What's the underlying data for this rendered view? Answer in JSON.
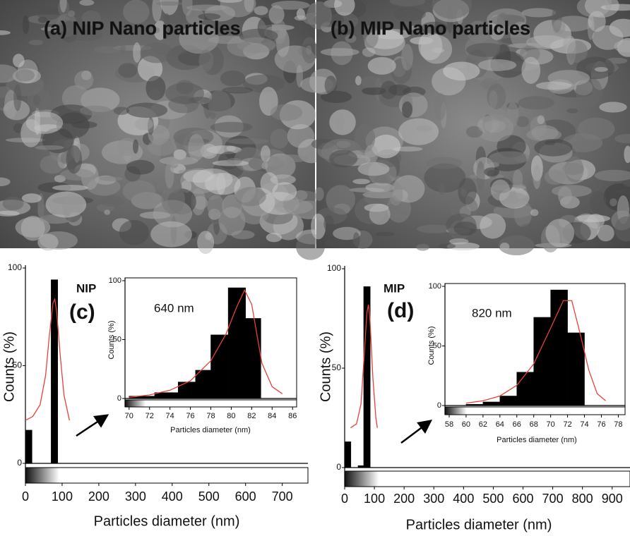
{
  "images": [
    {
      "label": "(a) NIP Nano particles",
      "color": "#f5e400"
    },
    {
      "label": "(b) MIP Nano particles",
      "color": "#ffffff"
    }
  ],
  "chart_data": [
    {
      "type": "histogram",
      "xlabel": "Particles diameter (nm)",
      "ylabel": "Counts (%)",
      "annotations": [
        "NIP",
        "(c)"
      ],
      "bins": [
        0,
        18,
        70,
        88
      ],
      "values": [
        17,
        0,
        94
      ],
      "color": "#000000",
      "fit": {
        "x": [
          0,
          20,
          40,
          55,
          65,
          75,
          80,
          85,
          95,
          105,
          120
        ],
        "values": [
          22,
          24,
          30,
          45,
          65,
          82,
          84,
          78,
          55,
          35,
          22
        ],
        "color": "#e8413a"
      },
      "xlim": [
        0,
        770
      ],
      "xticks": [
        0,
        100,
        200,
        300,
        400,
        500,
        600,
        700
      ],
      "ylim": [
        0,
        100
      ],
      "yticks": [
        0,
        50,
        100
      ]
    },
    {
      "type": "histogram",
      "xlabel": "Particles diameter (nm)",
      "ylabel": "Counts (%)",
      "annotations": [
        "640 nm"
      ],
      "bins": [
        70,
        72.5,
        74.8,
        76.5,
        78,
        79.7,
        81.4,
        82.9
      ],
      "values": [
        2,
        5,
        14,
        24,
        54,
        94,
        68
      ],
      "color": "#000000",
      "fit": {
        "x": [
          70,
          72,
          74,
          76,
          78,
          79.5,
          80.5,
          81.3,
          82,
          83,
          84,
          85
        ],
        "values": [
          1,
          3,
          7,
          15,
          32,
          55,
          77,
          92,
          80,
          30,
          10,
          4
        ],
        "color": "#e8413a"
      },
      "xlim": [
        69.6,
        86.4
      ],
      "xticks": [
        70,
        72,
        74,
        76,
        78,
        80,
        82,
        84,
        86
      ],
      "ylim": [
        0,
        100
      ],
      "yticks": [
        0,
        50,
        100
      ]
    },
    {
      "type": "histogram",
      "xlabel": "Particles diameter (nm)",
      "ylabel": "Counts (%)",
      "annotations": [
        "MIP",
        "(d)"
      ],
      "bins": [
        0,
        21,
        45,
        64,
        86
      ],
      "values": [
        13,
        0,
        1,
        91
      ],
      "color": "#000000",
      "fit": {
        "x": [
          20,
          40,
          55,
          65,
          75,
          80,
          85,
          95,
          105,
          110
        ],
        "values": [
          20,
          22,
          32,
          55,
          78,
          82,
          75,
          45,
          25,
          20
        ],
        "color": "#e8413a"
      },
      "xlim": [
        0,
        960
      ],
      "xticks": [
        0,
        100,
        200,
        300,
        400,
        500,
        600,
        700,
        800,
        900
      ],
      "ylim": [
        0,
        100
      ],
      "yticks": [
        0,
        50,
        100
      ]
    },
    {
      "type": "histogram",
      "xlabel": "Particles diameter (nm)",
      "ylabel": "Counts (%)",
      "annotations": [
        "820 nm"
      ],
      "bins": [
        60,
        62,
        64,
        66,
        68,
        70,
        72,
        74
      ],
      "values": [
        1,
        3,
        8,
        28,
        74,
        97,
        61
      ],
      "color": "#000000",
      "fit": {
        "x": [
          60,
          62,
          64,
          66,
          68,
          70,
          71.5,
          72.5,
          73.5,
          74.5,
          75.5,
          76.5
        ],
        "values": [
          2,
          4,
          8,
          17,
          35,
          65,
          88,
          88,
          60,
          30,
          10,
          4
        ],
        "color": "#e8413a"
      },
      "xlim": [
        57.5,
        78.8
      ],
      "xticks": [
        58,
        60,
        62,
        64,
        66,
        68,
        70,
        72,
        74,
        76,
        78
      ],
      "ylim": [
        0,
        100
      ],
      "yticks": [
        0,
        50,
        100
      ]
    }
  ]
}
